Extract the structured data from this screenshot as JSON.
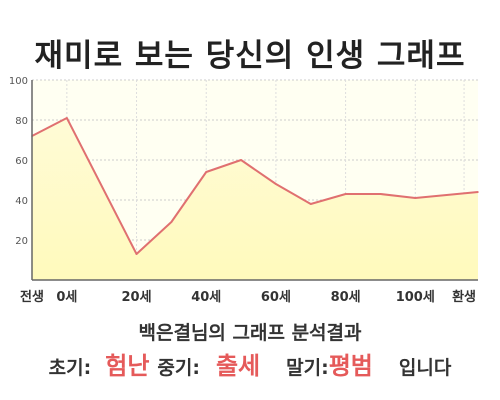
{
  "title": "재미로 보는 당신의 인생 그래프",
  "subtitle": "백은결님의 그래프 분석결과",
  "result": {
    "early_label": "초기:",
    "early_value": "험난",
    "middle_label": "중기:",
    "middle_value": "출세",
    "late_label": "말기:",
    "late_value": "평범",
    "suffix": "입니다"
  },
  "colors": {
    "line": "#e07070",
    "fill_top": "#fffbd6",
    "fill_bottom": "#fffabc",
    "plot_bg": "#fffff2",
    "grid": "#cccccc",
    "accent_text": "#e55a5a"
  },
  "chart_data": {
    "type": "area",
    "title": "재미로 보는 당신의 인생 그래프",
    "xlabel": "",
    "ylabel": "",
    "ylim": [
      0,
      100
    ],
    "yticks": [
      20,
      40,
      60,
      80,
      100
    ],
    "grid": true,
    "x_tick_labels": [
      {
        "x": -10,
        "label": "전생"
      },
      {
        "x": 0,
        "label": "0세"
      },
      {
        "x": 20,
        "label": "20세"
      },
      {
        "x": 40,
        "label": "40세"
      },
      {
        "x": 60,
        "label": "60세"
      },
      {
        "x": 80,
        "label": "80세"
      },
      {
        "x": 100,
        "label": "100세"
      },
      {
        "x": 114,
        "label": "환생"
      }
    ],
    "xlim": [
      -10,
      118
    ],
    "series": [
      {
        "x": [
          -10,
          0,
          20,
          30,
          40,
          50,
          60,
          70,
          80,
          90,
          100,
          118
        ],
        "y": [
          72,
          81,
          13,
          29,
          54,
          60,
          48,
          38,
          43,
          43,
          41,
          44
        ]
      }
    ]
  }
}
